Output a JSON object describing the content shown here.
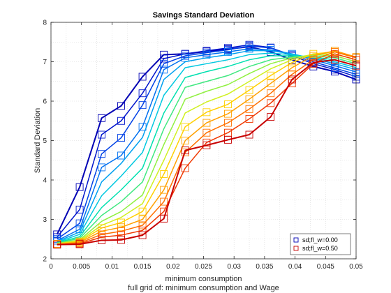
{
  "chart_data": {
    "type": "line",
    "title": "Savings Standard Deviation",
    "xlabel": "minimum consumption",
    "xlabel2": "full grid of: minimum consumption and Wage",
    "ylabel": "Standard Deviation",
    "xlim": [
      0,
      0.05
    ],
    "ylim": [
      2,
      8
    ],
    "xticks": [
      0,
      0.005,
      0.01,
      0.015,
      0.02,
      0.025,
      0.03,
      0.035,
      0.04,
      0.045,
      0.05
    ],
    "xtick_labels": [
      "0",
      "0.005",
      "0.01",
      "0.015",
      "0.02",
      "0.025",
      "0.03",
      "0.035",
      "0.04",
      "0.045",
      "0.05"
    ],
    "yticks": [
      2,
      3,
      4,
      5,
      6,
      7,
      8
    ],
    "ytick_labels": [
      "2",
      "3",
      "4",
      "5",
      "6",
      "7",
      "8"
    ],
    "grid": true,
    "legend_position": "bottom-right",
    "x": [
      0.001,
      0.0047,
      0.0083,
      0.0115,
      0.015,
      0.0185,
      0.022,
      0.0255,
      0.029,
      0.0325,
      0.036,
      0.0395,
      0.043,
      0.0465,
      0.05
    ],
    "series": [
      {
        "name": "sd;fl_w=0.00",
        "legend": true,
        "color": "#0000b4",
        "width": 2,
        "markers": true,
        "values": [
          2.62,
          3.82,
          5.57,
          5.88,
          6.62,
          7.18,
          7.2,
          7.26,
          7.32,
          7.38,
          7.25,
          7.05,
          6.88,
          6.75,
          6.55
        ]
      },
      {
        "color": "#0014cc",
        "width": 1.5,
        "markers": true,
        "values": [
          2.55,
          3.25,
          5.15,
          5.5,
          6.2,
          7.08,
          7.2,
          7.28,
          7.35,
          7.43,
          7.36,
          7.15,
          6.95,
          6.8,
          6.62
        ]
      },
      {
        "color": "#0040e6",
        "width": 1.5,
        "markers": true,
        "values": [
          2.5,
          2.9,
          4.66,
          5.07,
          5.9,
          6.95,
          7.15,
          7.23,
          7.3,
          7.4,
          7.35,
          7.17,
          7.0,
          6.84,
          6.68
        ]
      },
      {
        "color": "#0070f0",
        "width": 1.5,
        "markers": true,
        "values": [
          2.46,
          2.75,
          4.32,
          4.62,
          5.35,
          6.8,
          7.1,
          7.18,
          7.25,
          7.33,
          7.3,
          7.2,
          7.05,
          6.9,
          6.74
        ]
      },
      {
        "color": "#00a0f0",
        "width": 1.5,
        "markers": false,
        "values": [
          2.44,
          2.68,
          3.95,
          4.42,
          5.08,
          6.55,
          7.0,
          7.1,
          7.18,
          7.28,
          7.28,
          7.2,
          7.08,
          6.95,
          6.8
        ]
      },
      {
        "color": "#00c8e0",
        "width": 1.5,
        "markers": false,
        "values": [
          2.42,
          2.62,
          3.6,
          4.1,
          4.7,
          6.15,
          6.85,
          6.95,
          7.05,
          7.18,
          7.22,
          7.18,
          7.1,
          7.0,
          6.85
        ]
      },
      {
        "color": "#00e0b0",
        "width": 1.5,
        "markers": false,
        "values": [
          2.41,
          2.56,
          3.3,
          3.75,
          4.3,
          5.7,
          6.6,
          6.75,
          6.88,
          7.05,
          7.15,
          7.15,
          7.12,
          7.05,
          6.9
        ]
      },
      {
        "color": "#40e880",
        "width": 1.5,
        "markers": false,
        "values": [
          2.4,
          2.52,
          3.1,
          3.45,
          3.95,
          5.3,
          6.35,
          6.5,
          6.65,
          6.88,
          7.05,
          7.12,
          7.15,
          7.1,
          6.95
        ]
      },
      {
        "color": "#90f040",
        "width": 1.5,
        "markers": false,
        "values": [
          2.39,
          2.48,
          2.95,
          3.2,
          3.62,
          4.9,
          6.05,
          6.25,
          6.42,
          6.7,
          6.95,
          7.1,
          7.18,
          7.15,
          7.0
        ]
      },
      {
        "color": "#d0f020",
        "width": 1.5,
        "markers": false,
        "values": [
          2.38,
          2.46,
          2.85,
          3.05,
          3.4,
          4.5,
          5.7,
          5.98,
          6.18,
          6.5,
          6.82,
          7.05,
          7.2,
          7.2,
          7.05
        ]
      },
      {
        "color": "#ffd000",
        "width": 1.5,
        "markers": true,
        "values": [
          2.38,
          2.44,
          2.78,
          2.92,
          3.2,
          4.15,
          5.35,
          5.72,
          5.92,
          6.28,
          6.65,
          6.98,
          7.2,
          7.25,
          7.1
        ]
      },
      {
        "color": "#ffa000",
        "width": 1.5,
        "markers": true,
        "values": [
          2.37,
          2.42,
          2.7,
          2.8,
          3.0,
          3.75,
          5.0,
          5.45,
          5.68,
          6.05,
          6.45,
          6.85,
          7.15,
          7.28,
          7.12
        ]
      },
      {
        "color": "#ff7000",
        "width": 1.5,
        "markers": true,
        "values": [
          2.37,
          2.4,
          2.62,
          2.7,
          2.85,
          3.45,
          4.7,
          5.2,
          5.45,
          5.8,
          6.2,
          6.68,
          7.05,
          7.25,
          7.1
        ]
      },
      {
        "color": "#f03800",
        "width": 1.5,
        "markers": true,
        "values": [
          2.36,
          2.38,
          2.55,
          2.6,
          2.72,
          3.2,
          4.3,
          4.95,
          5.2,
          5.55,
          5.95,
          6.45,
          6.95,
          7.2,
          7.05
        ]
      },
      {
        "name": "sd;fl_w=0.50",
        "legend": true,
        "color": "#c80000",
        "width": 2,
        "markers": true,
        "values": [
          2.36,
          2.37,
          2.47,
          2.48,
          2.6,
          3.02,
          4.75,
          4.88,
          5.02,
          5.15,
          5.6,
          6.55,
          6.98,
          7.05,
          6.9
        ]
      }
    ]
  }
}
